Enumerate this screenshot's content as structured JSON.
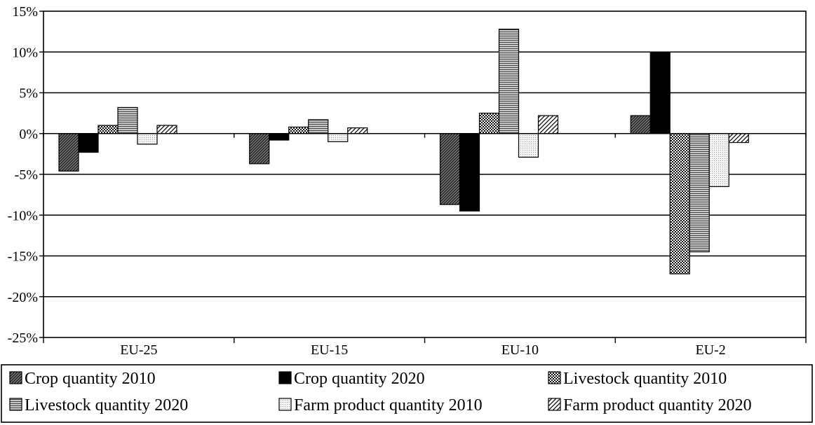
{
  "chart_data": {
    "type": "bar",
    "categories": [
      "EU-25",
      "EU-15",
      "EU-10",
      "EU-2"
    ],
    "series": [
      {
        "name": "Crop quantity 2010",
        "values": [
          -4.6,
          -3.7,
          -8.7,
          2.2
        ],
        "pattern": "diag-dense"
      },
      {
        "name": "Crop quantity 2020",
        "values": [
          -2.3,
          -0.8,
          -9.5,
          10.0
        ],
        "pattern": "solid-black"
      },
      {
        "name": "Livestock quantity 2010",
        "values": [
          1.0,
          0.8,
          2.5,
          -17.2
        ],
        "pattern": "checker"
      },
      {
        "name": "Livestock quantity 2020",
        "values": [
          3.2,
          1.7,
          12.8,
          -14.5
        ],
        "pattern": "horizontal"
      },
      {
        "name": "Farm product quantity 2010",
        "values": [
          -1.3,
          -1.0,
          -2.9,
          -6.5
        ],
        "pattern": "dots"
      },
      {
        "name": "Farm product quantity 2020",
        "values": [
          1.0,
          0.7,
          2.2,
          -1.1
        ],
        "pattern": "diag-wide"
      }
    ],
    "ylim": [
      -25,
      15
    ],
    "yticks": [
      15,
      10,
      5,
      0,
      -5,
      -10,
      -15,
      -20,
      -25
    ],
    "ytick_labels": [
      "15%",
      "10%",
      "5%",
      "0%",
      "-5%",
      "-10%",
      "-15%",
      "-20%",
      "-25%"
    ],
    "grid": true,
    "legend_position": "bottom",
    "colors": {
      "bar_outline": "#000000",
      "dark_fill": "#555555",
      "light_fill": "#e6e6e6"
    }
  }
}
